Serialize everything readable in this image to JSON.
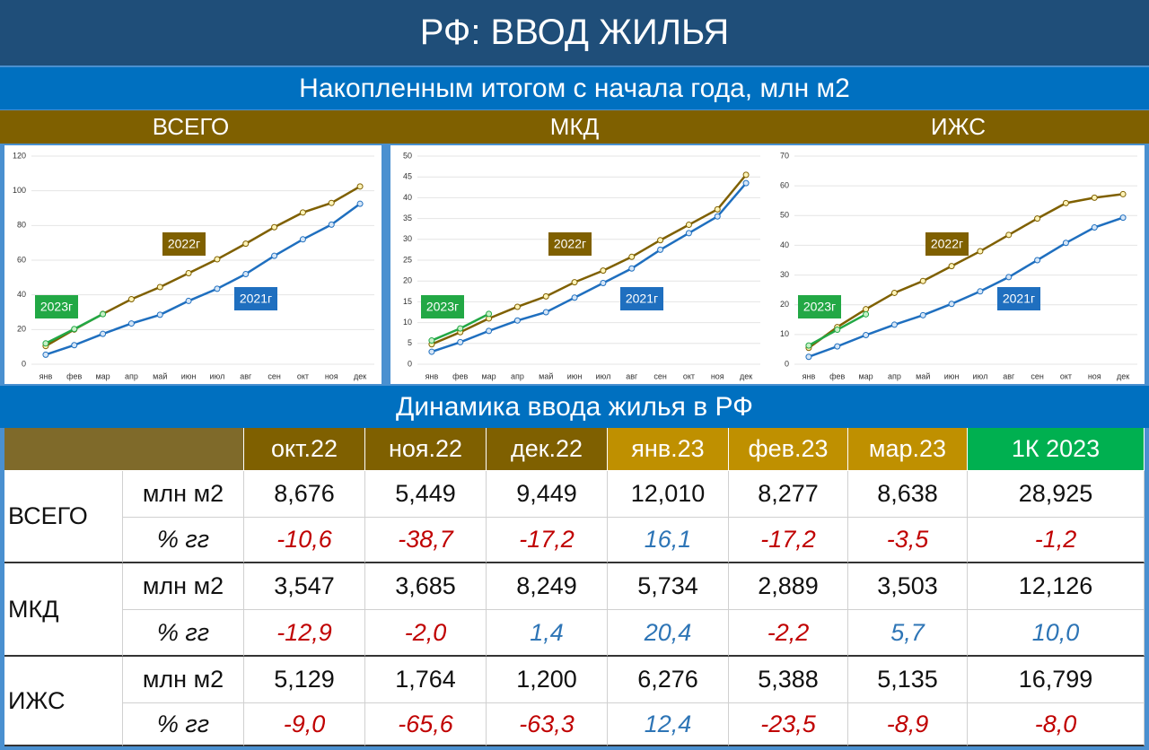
{
  "title": "РФ: ВВОД ЖИЛЬЯ",
  "subtitle": "Накопленным итогом с начала года, млн м2",
  "chart_data": [
    {
      "type": "line",
      "title": "ВСЕГО",
      "categories": [
        "янв",
        "фев",
        "мар",
        "апр",
        "май",
        "июн",
        "июл",
        "авг",
        "сен",
        "окт",
        "ноя",
        "дек"
      ],
      "ylim": [
        0,
        120
      ],
      "yticks": [
        0,
        20,
        40,
        60,
        80,
        100,
        120
      ],
      "grid": true,
      "series": [
        {
          "name": "2021г",
          "color": "#1f6fbf",
          "values": [
            5.5,
            11,
            17.5,
            23.5,
            28.5,
            36.5,
            43.5,
            52,
            62.5,
            72,
            80.5,
            92.5
          ]
        },
        {
          "name": "2022г",
          "color": "#7f6000",
          "values": [
            10.5,
            20,
            29,
            37.5,
            44.5,
            52.5,
            60.5,
            69.5,
            79,
            87.5,
            93,
            102.5
          ]
        },
        {
          "name": "2023г",
          "color": "#22a845",
          "values": [
            12,
            20.3,
            28.9,
            null,
            null,
            null,
            null,
            null,
            null,
            null,
            null,
            null
          ]
        }
      ]
    },
    {
      "type": "line",
      "title": "МКД",
      "categories": [
        "янв",
        "фев",
        "мар",
        "апр",
        "май",
        "июн",
        "июл",
        "авг",
        "сен",
        "окт",
        "ноя",
        "дек"
      ],
      "ylim": [
        0,
        50
      ],
      "yticks": [
        0,
        5,
        10,
        15,
        20,
        25,
        30,
        35,
        40,
        45,
        50
      ],
      "grid": true,
      "series": [
        {
          "name": "2021г",
          "color": "#1f6fbf",
          "values": [
            3,
            5.3,
            8,
            10.5,
            12.5,
            16,
            19.5,
            23,
            27.5,
            31.5,
            35.5,
            43.5
          ]
        },
        {
          "name": "2022г",
          "color": "#7f6000",
          "values": [
            4.8,
            7.7,
            11,
            13.8,
            16.3,
            19.7,
            22.5,
            25.8,
            29.8,
            33.5,
            37.2,
            45.5
          ]
        },
        {
          "name": "2023г",
          "color": "#22a845",
          "values": [
            5.7,
            8.6,
            12.1,
            null,
            null,
            null,
            null,
            null,
            null,
            null,
            null,
            null
          ]
        }
      ]
    },
    {
      "type": "line",
      "title": "ИЖС",
      "categories": [
        "янв",
        "фев",
        "мар",
        "апр",
        "май",
        "июн",
        "июл",
        "авг",
        "сен",
        "окт",
        "ноя",
        "дек"
      ],
      "ylim": [
        0,
        70
      ],
      "yticks": [
        0,
        10,
        20,
        30,
        40,
        50,
        60,
        70
      ],
      "grid": true,
      "series": [
        {
          "name": "2021г",
          "color": "#1f6fbf",
          "values": [
            2.5,
            6,
            9.8,
            13.3,
            16.5,
            20.3,
            24.5,
            29.3,
            35,
            40.8,
            46,
            49.3
          ]
        },
        {
          "name": "2022г",
          "color": "#7f6000",
          "values": [
            5.5,
            12.5,
            18.5,
            24,
            28,
            33,
            38,
            43.5,
            49,
            54.2,
            56,
            57.2
          ]
        },
        {
          "name": "2023г",
          "color": "#22a845",
          "values": [
            6.3,
            11.6,
            16.8,
            null,
            null,
            null,
            null,
            null,
            null,
            null,
            null,
            null
          ]
        }
      ]
    }
  ],
  "table_title": "Динамика ввода жилья в РФ",
  "table": {
    "header": [
      "окт.22",
      "ноя.22",
      "дек.22",
      "янв.23",
      "фев.23",
      "мар.23",
      "1К 2023"
    ],
    "groups": [
      {
        "name": "ВСЕГО",
        "rows": [
          {
            "unit": "млн м2",
            "values": [
              "8,676",
              "5,449",
              "9,449",
              "12,010",
              "8,277",
              "8,638",
              "28,925"
            ]
          },
          {
            "unit": "% гг",
            "values": [
              "-10,6",
              "-38,7",
              "-17,2",
              "16,1",
              "-17,2",
              "-3,5",
              "-1,2"
            ]
          }
        ]
      },
      {
        "name": "МКД",
        "rows": [
          {
            "unit": "млн м2",
            "values": [
              "3,547",
              "3,685",
              "8,249",
              "5,734",
              "2,889",
              "3,503",
              "12,126"
            ]
          },
          {
            "unit": "% гг",
            "values": [
              "-12,9",
              "-2,0",
              "1,4",
              "20,4",
              "-2,2",
              "5,7",
              "10,0"
            ]
          }
        ]
      },
      {
        "name": "ИЖС",
        "rows": [
          {
            "unit": "млн м2",
            "values": [
              "5,129",
              "1,764",
              "1,200",
              "6,276",
              "5,388",
              "5,135",
              "16,799"
            ]
          },
          {
            "unit": "% гг",
            "values": [
              "-9,0",
              "-65,6",
              "-63,3",
              "12,4",
              "-23,5",
              "-8,9",
              "-8,0"
            ]
          }
        ]
      }
    ]
  }
}
